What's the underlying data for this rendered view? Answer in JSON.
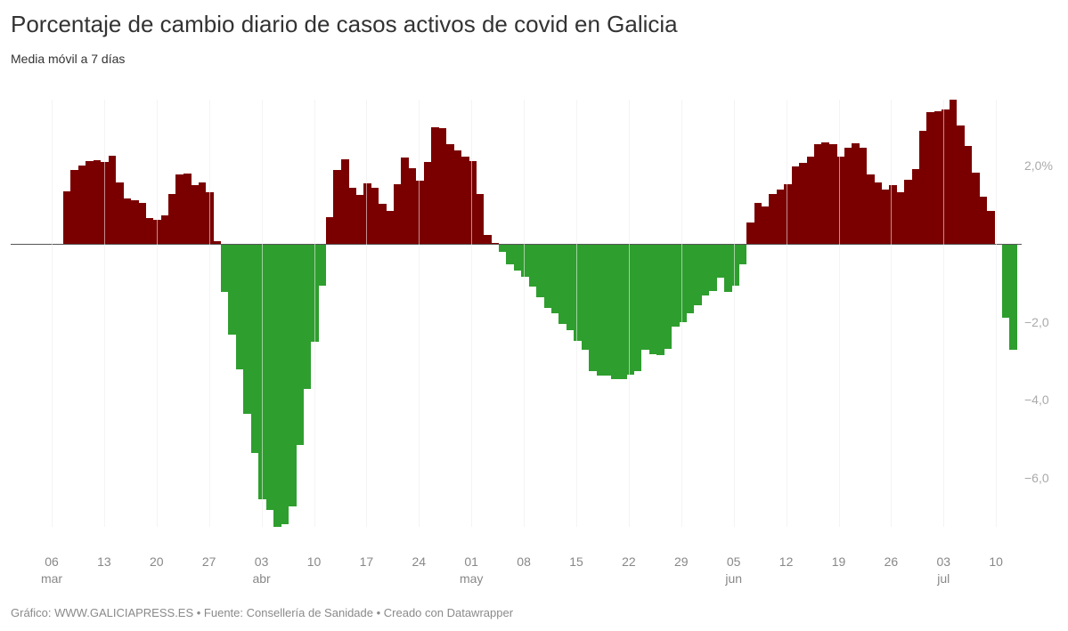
{
  "title": "Porcentaje de cambio diario de casos activos de covid en Galicia",
  "subtitle": "Media móvil a 7 días",
  "footer": "Gráfico: WWW.GALICIAPRESS.ES • Fuente: Consellería de Sanidade • Creado con Datawrapper",
  "colors": {
    "positive": "#7a0000",
    "negative": "#2e9e2e"
  },
  "chart_data": {
    "type": "bar",
    "title": "Porcentaje de cambio diario de casos activos de covid en Galicia",
    "subtitle": "Media móvil a 7 días",
    "xlabel": "",
    "ylabel": "%",
    "ylim": [
      -7.3,
      3.7
    ],
    "y_ticks": [
      {
        "value": 2,
        "label": "2,0%"
      },
      {
        "value": -2,
        "label": "−2,0"
      },
      {
        "value": -4,
        "label": "−4,0"
      },
      {
        "value": -6,
        "label": "−6,0"
      }
    ],
    "x_ticks": [
      {
        "day": "06",
        "month": "mar"
      },
      {
        "day": "13",
        "month": ""
      },
      {
        "day": "20",
        "month": ""
      },
      {
        "day": "27",
        "month": ""
      },
      {
        "day": "03",
        "month": "abr"
      },
      {
        "day": "10",
        "month": ""
      },
      {
        "day": "17",
        "month": ""
      },
      {
        "day": "24",
        "month": ""
      },
      {
        "day": "01",
        "month": "may"
      },
      {
        "day": "08",
        "month": ""
      },
      {
        "day": "15",
        "month": ""
      },
      {
        "day": "22",
        "month": ""
      },
      {
        "day": "29",
        "month": ""
      },
      {
        "day": "05",
        "month": "jun"
      },
      {
        "day": "12",
        "month": ""
      },
      {
        "day": "19",
        "month": ""
      },
      {
        "day": "26",
        "month": ""
      },
      {
        "day": "03",
        "month": "jul"
      },
      {
        "day": "10",
        "month": ""
      }
    ],
    "grid": {
      "vertical": true,
      "horizontal": false
    },
    "start_date": "08 mar",
    "values": [
      1.35,
      1.9,
      2.0,
      2.12,
      2.15,
      2.1,
      2.26,
      1.58,
      1.16,
      1.12,
      1.05,
      0.66,
      0.62,
      0.73,
      1.28,
      1.78,
      1.8,
      1.5,
      1.58,
      1.32,
      0.07,
      -1.23,
      -2.33,
      -3.22,
      -4.36,
      -5.37,
      -6.55,
      -6.83,
      -7.26,
      -7.19,
      -6.73,
      -5.16,
      -3.72,
      -2.51,
      -1.07,
      0.68,
      1.9,
      2.17,
      1.44,
      1.26,
      1.55,
      1.44,
      1.03,
      0.84,
      1.53,
      2.21,
      1.94,
      1.62,
      2.1,
      2.99,
      2.97,
      2.56,
      2.4,
      2.24,
      2.12,
      1.28,
      0.23,
      0.02,
      -0.2,
      -0.52,
      -0.68,
      -0.84,
      -1.1,
      -1.37,
      -1.64,
      -1.78,
      -2.05,
      -2.21,
      -2.49,
      -2.72,
      -3.26,
      -3.38,
      -3.38,
      -3.47,
      -3.47,
      -3.36,
      -3.26,
      -2.72,
      -2.83,
      -2.85,
      -2.69,
      -2.12,
      -2.01,
      -1.78,
      -1.58,
      -1.32,
      -1.21,
      -0.87,
      -1.23,
      -1.07,
      -0.52,
      0.55,
      1.05,
      0.96,
      1.28,
      1.39,
      1.53,
      1.99,
      2.08,
      2.24,
      2.56,
      2.6,
      2.56,
      2.24,
      2.47,
      2.58,
      2.47,
      1.78,
      1.58,
      1.39,
      1.51,
      1.32,
      1.64,
      1.92,
      2.9,
      3.38,
      3.4,
      3.45,
      3.7,
      3.04,
      2.51,
      1.83,
      1.21,
      0.84,
      -0.03,
      -1.9,
      -2.72
    ]
  }
}
